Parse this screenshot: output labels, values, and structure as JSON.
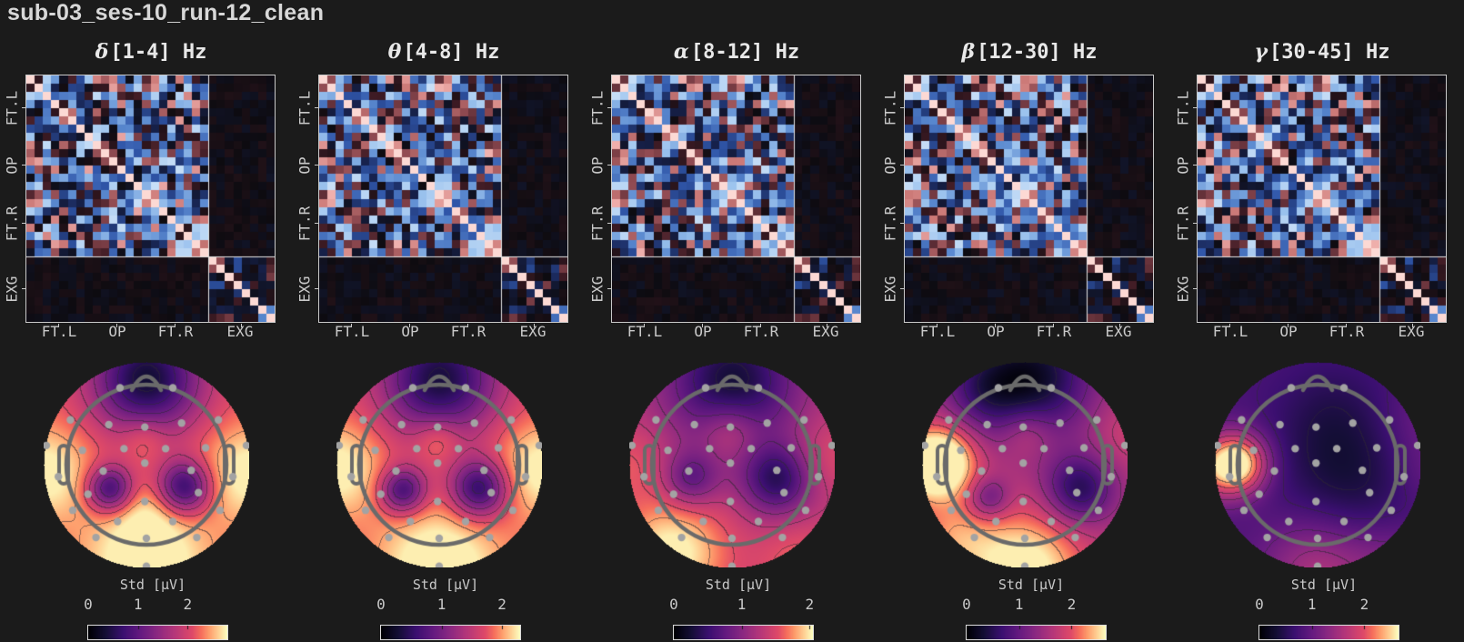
{
  "page": {
    "title": "sub-03_ses-10_run-12_clean",
    "background": "#1b1b1b"
  },
  "chart_data": {
    "type": "heatmap",
    "figure": "Per-band channel covariance matrices (top row) and Std [µV] sensor topomaps with colorbars (bottom row)",
    "bands": [
      {
        "name": "delta",
        "symbol": "δ",
        "range_label": "[1-4] Hz",
        "freq_hz": [
          1,
          4
        ],
        "cbar_max": 2.8,
        "noise_seed": 11,
        "topo": {
          "base": 0.78,
          "blobs": [
            [
              0,
              -1.08,
              0.48,
              -0.66
            ],
            [
              -0.03,
              -0.36,
              0.2,
              0.14
            ],
            [
              -0.46,
              0.3,
              0.2,
              -0.55
            ],
            [
              0.47,
              0.28,
              0.23,
              -0.58
            ],
            [
              0,
              1.25,
              0.55,
              0.3
            ],
            [
              -1.28,
              0.1,
              0.42,
              0.24
            ],
            [
              1.28,
              0.1,
              0.42,
              0.24
            ],
            [
              0,
              0.62,
              0.28,
              0.1
            ]
          ]
        }
      },
      {
        "name": "theta",
        "symbol": "θ",
        "range_label": "[4-8] Hz",
        "freq_hz": [
          4,
          8
        ],
        "cbar_max": 2.3,
        "noise_seed": 23,
        "topo": {
          "base": 0.76,
          "blobs": [
            [
              0,
              -1.08,
              0.5,
              -0.62
            ],
            [
              -0.02,
              -0.34,
              0.2,
              0.18
            ],
            [
              -0.46,
              0.32,
              0.2,
              -0.52
            ],
            [
              0.5,
              0.3,
              0.25,
              -0.58
            ],
            [
              0,
              1.28,
              0.55,
              0.32
            ],
            [
              -1.28,
              0.05,
              0.42,
              0.26
            ],
            [
              1.28,
              0.05,
              0.42,
              0.26
            ]
          ]
        }
      },
      {
        "name": "alpha",
        "symbol": "α",
        "range_label": "[8-12] Hz",
        "freq_hz": [
          8,
          12
        ],
        "cbar_max": 2.05,
        "noise_seed": 37,
        "topo": {
          "base": 0.62,
          "blobs": [
            [
              0,
              -1.05,
              0.55,
              -0.5
            ],
            [
              -0.03,
              -0.45,
              0.25,
              0.2
            ],
            [
              -0.52,
              0.18,
              0.24,
              -0.3
            ],
            [
              0.56,
              0.18,
              0.3,
              -0.42
            ],
            [
              -0.75,
              1.1,
              0.5,
              0.4
            ],
            [
              1.25,
              -0.1,
              0.35,
              0.12
            ],
            [
              -1.3,
              -0.05,
              0.35,
              0.14
            ],
            [
              0.85,
              1.25,
              0.4,
              0.18
            ]
          ]
        }
      },
      {
        "name": "beta",
        "symbol": "β",
        "range_label": "[12-30] Hz",
        "freq_hz": [
          12,
          30
        ],
        "cbar_max": 2.65,
        "noise_seed": 51,
        "topo": {
          "base": 0.6,
          "blobs": [
            [
              0.08,
              -1.1,
              0.52,
              -0.52
            ],
            [
              -0.55,
              -0.95,
              0.35,
              -0.22
            ],
            [
              -1.05,
              -0.05,
              0.3,
              0.55
            ],
            [
              -1.35,
              0.05,
              0.3,
              0.2
            ],
            [
              0.68,
              0.3,
              0.3,
              -0.42
            ],
            [
              -0.45,
              0.42,
              0.18,
              -0.28
            ],
            [
              0.02,
              -0.42,
              0.22,
              0.16
            ],
            [
              0,
              1.32,
              0.52,
              0.45
            ],
            [
              -0.9,
              0.9,
              0.38,
              0.22
            ],
            [
              1.3,
              -0.4,
              0.32,
              0.1
            ]
          ]
        }
      },
      {
        "name": "gamma",
        "symbol": "γ",
        "range_label": "[30-45] Hz",
        "freq_hz": [
          30,
          45
        ],
        "cbar_max": 2.65,
        "noise_seed": 67,
        "topo": {
          "base": 0.3,
          "blobs": [
            [
              -1.0,
              -0.02,
              0.26,
              0.68
            ],
            [
              -1.35,
              0.05,
              0.3,
              0.3
            ],
            [
              0.35,
              0.25,
              0.6,
              -0.16
            ],
            [
              0.15,
              -0.65,
              0.5,
              -0.1
            ],
            [
              0,
              1.32,
              0.5,
              0.3
            ],
            [
              0.95,
              1.25,
              0.38,
              0.14
            ],
            [
              1.3,
              -0.55,
              0.35,
              0.1
            ],
            [
              1.35,
              0.1,
              0.3,
              0.08
            ]
          ]
        }
      }
    ],
    "matrix": {
      "n_channels": 30,
      "n_eeg": 22,
      "groups": [
        {
          "label": "FT.L",
          "start": 0,
          "end": 8
        },
        {
          "label": "OP",
          "start": 8,
          "end": 14
        },
        {
          "label": "FT.R",
          "start": 14,
          "end": 22
        },
        {
          "label": "EXG",
          "start": 22,
          "end": 30
        }
      ]
    },
    "colorbar": {
      "label": "Std [µV]",
      "tick_labels": [
        "0",
        "1",
        "2"
      ],
      "tick_values": [
        0,
        1,
        2
      ]
    },
    "sensors": [
      [
        -0.33,
        -0.96
      ],
      [
        0.33,
        -0.96
      ],
      [
        -0.95,
        -0.56
      ],
      [
        -0.47,
        -0.5
      ],
      [
        -0.02,
        -0.47
      ],
      [
        0.44,
        -0.52
      ],
      [
        0.9,
        -0.56
      ],
      [
        -1.25,
        -0.24
      ],
      [
        1.25,
        -0.24
      ],
      [
        -0.8,
        -0.18
      ],
      [
        -0.28,
        -0.2
      ],
      [
        0.24,
        -0.2
      ],
      [
        0.74,
        -0.21
      ],
      [
        -0.02,
        -0.02
      ],
      [
        -1.1,
        0.15
      ],
      [
        -0.54,
        0.08
      ],
      [
        0.56,
        0.07
      ],
      [
        1.08,
        0.15
      ],
      [
        -0.73,
        0.37
      ],
      [
        0.65,
        0.35
      ],
      [
        -0.02,
        0.46
      ],
      [
        -0.92,
        0.57
      ],
      [
        0.92,
        0.57
      ],
      [
        -0.36,
        0.71
      ],
      [
        0.33,
        0.71
      ],
      [
        -0.63,
        0.91
      ],
      [
        0.0,
        0.92
      ],
      [
        0.63,
        0.91
      ],
      [
        0.0,
        1.27
      ]
    ],
    "colors": {
      "background": "#1b1b1b",
      "text": "#d8d8d8",
      "muted_text": "#c9c9c9",
      "frame": "#c9c9c9",
      "separator": "#e6e6e6",
      "head_outline": "#6a6a6a",
      "sensor_dot": "#a3a3a3",
      "contour": "#2d2833",
      "magma_stops": [
        [
          0,
          "#000004"
        ],
        [
          0.125,
          "#140e36"
        ],
        [
          0.25,
          "#3b0f70"
        ],
        [
          0.375,
          "#641a80"
        ],
        [
          0.5,
          "#8c2981"
        ],
        [
          0.625,
          "#b73779"
        ],
        [
          0.75,
          "#de4968"
        ],
        [
          0.815,
          "#f66e5c"
        ],
        [
          0.875,
          "#fe9f6d"
        ],
        [
          0.9375,
          "#fecf92"
        ],
        [
          1,
          "#fcfdbf"
        ]
      ],
      "diverging_pos": [
        [
          0,
          "#0d0b10"
        ],
        [
          0.3,
          "#3f1b24"
        ],
        [
          0.55,
          "#8f4a51"
        ],
        [
          0.75,
          "#cc7a78"
        ],
        [
          0.9,
          "#eeadaa"
        ],
        [
          1,
          "#fcd9d4"
        ]
      ],
      "diverging_neg": [
        [
          0,
          "#0d0b10"
        ],
        [
          0.3,
          "#17224e"
        ],
        [
          0.55,
          "#2f55a8"
        ],
        [
          0.75,
          "#5b8ad0"
        ],
        [
          0.9,
          "#9cc3ee"
        ],
        [
          1,
          "#d4e6f9"
        ]
      ]
    }
  }
}
